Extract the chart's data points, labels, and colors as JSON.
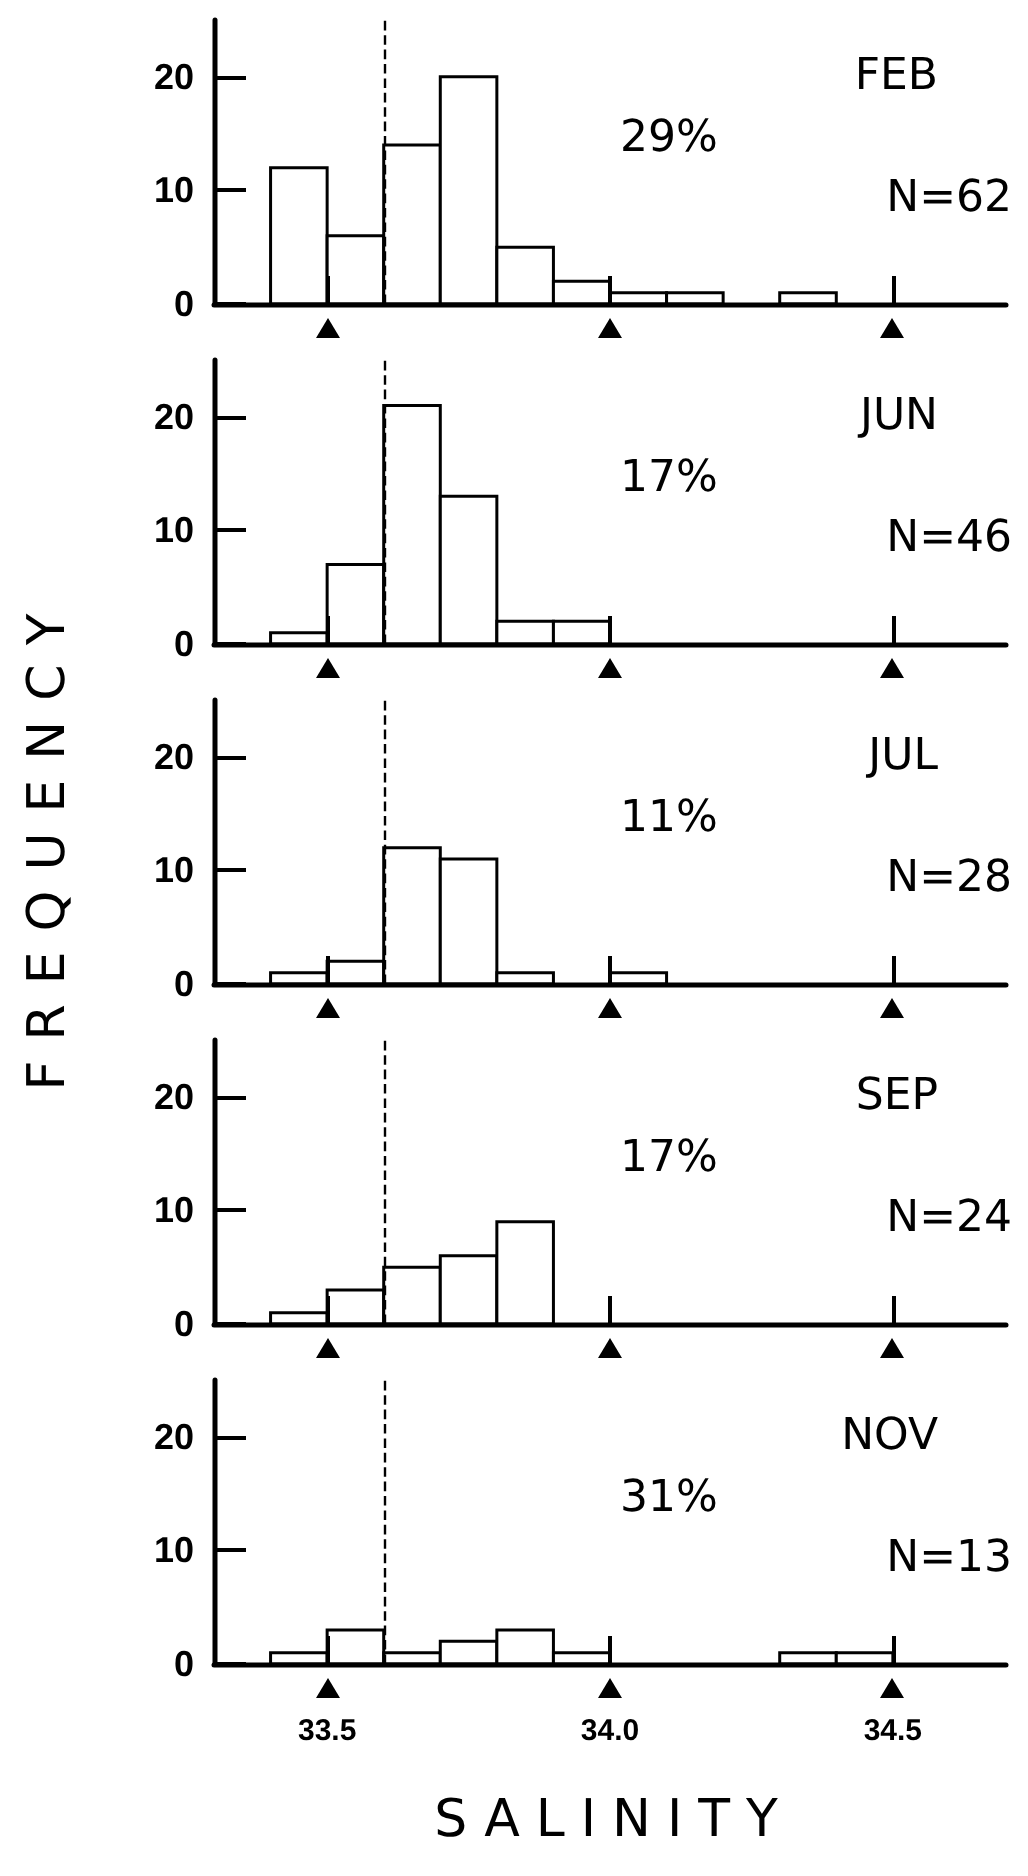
{
  "chart_data": [
    {
      "type": "histogram",
      "title": "FEB",
      "annotations": [
        "29%",
        "N=62"
      ],
      "bins": [
        33.3,
        33.4,
        33.5,
        33.6,
        33.7,
        33.8,
        33.9,
        34.0,
        34.1,
        34.2,
        34.3,
        34.4,
        34.5,
        34.6,
        34.7
      ],
      "values": [
        0,
        12,
        6,
        14,
        20,
        5,
        2,
        1,
        1,
        0,
        1,
        0,
        0,
        0
      ],
      "color": "#ffffff",
      "xlim": [
        33.3,
        34.7
      ],
      "xticks": [
        {
          "value": 33.5,
          "label": null
        },
        {
          "value": 34,
          "label": null
        },
        {
          "value": 34.5,
          "label": null
        }
      ],
      "ylim": [
        0,
        25
      ],
      "yticks": [
        0,
        10,
        20
      ],
      "tick_labels": "y",
      "ref_lines": [
        {
          "axis": "x",
          "value": 33.6,
          "line_style": "dashed"
        }
      ]
    },
    {
      "type": "histogram",
      "title": "JUN",
      "annotations": [
        "17%",
        "N=46"
      ],
      "bins": [
        33.3,
        33.4,
        33.5,
        33.6,
        33.7,
        33.8,
        33.9,
        34.0,
        34.1,
        34.2,
        34.3,
        34.4,
        34.5,
        34.6,
        34.7
      ],
      "values": [
        0,
        1,
        7,
        21,
        13,
        2,
        2,
        0,
        0,
        0,
        0,
        0,
        0,
        0
      ],
      "color": "#ffffff",
      "xlim": [
        33.3,
        34.7
      ],
      "xticks": [
        {
          "value": 33.5,
          "label": null
        },
        {
          "value": 34,
          "label": null
        },
        {
          "value": 34.5,
          "label": null
        }
      ],
      "ylim": [
        0,
        25
      ],
      "yticks": [
        0,
        10,
        20
      ],
      "tick_labels": "y",
      "ref_lines": [
        {
          "axis": "x",
          "value": 33.6,
          "line_style": "dashed"
        }
      ]
    },
    {
      "type": "histogram",
      "title": "JUL",
      "annotations": [
        "11%",
        "N=28"
      ],
      "ylabel": "FREQUENCY",
      "bins": [
        33.3,
        33.4,
        33.5,
        33.6,
        33.7,
        33.8,
        33.9,
        34.0,
        34.1,
        34.2,
        34.3,
        34.4,
        34.5,
        34.6,
        34.7
      ],
      "values": [
        0,
        1,
        2,
        12,
        11,
        1,
        0,
        1,
        0,
        0,
        0,
        0,
        0,
        0
      ],
      "color": "#ffffff",
      "xlim": [
        33.3,
        34.7
      ],
      "xticks": [
        {
          "value": 33.5,
          "label": null
        },
        {
          "value": 34,
          "label": null
        },
        {
          "value": 34.5,
          "label": null
        }
      ],
      "ylim": [
        0,
        25
      ],
      "yticks": [
        0,
        10,
        20
      ],
      "tick_labels": "y",
      "ref_lines": [
        {
          "axis": "x",
          "value": 33.6,
          "line_style": "dashed"
        }
      ]
    },
    {
      "type": "histogram",
      "title": "SEP",
      "annotations": [
        "17%",
        "N=24"
      ],
      "bins": [
        33.3,
        33.4,
        33.5,
        33.6,
        33.7,
        33.8,
        33.9,
        34.0,
        34.1,
        34.2,
        34.3,
        34.4,
        34.5,
        34.6,
        34.7
      ],
      "values": [
        0,
        1,
        3,
        5,
        6,
        9,
        0,
        0,
        0,
        0,
        0,
        0,
        0,
        0
      ],
      "color": "#ffffff",
      "xlim": [
        33.3,
        34.7
      ],
      "xticks": [
        {
          "value": 33.5,
          "label": null
        },
        {
          "value": 34,
          "label": null
        },
        {
          "value": 34.5,
          "label": null
        }
      ],
      "ylim": [
        0,
        25
      ],
      "yticks": [
        0,
        10,
        20
      ],
      "tick_labels": "y",
      "ref_lines": [
        {
          "axis": "x",
          "value": 33.6,
          "line_style": "dashed"
        }
      ]
    },
    {
      "type": "histogram",
      "title": "NOV",
      "annotations": [
        "31%",
        "N=13"
      ],
      "xlabel": "SALINITY",
      "bins": [
        33.3,
        33.4,
        33.5,
        33.6,
        33.7,
        33.8,
        33.9,
        34.0,
        34.1,
        34.2,
        34.3,
        34.4,
        34.5,
        34.6,
        34.7
      ],
      "values": [
        0,
        1,
        3,
        1,
        2,
        3,
        1,
        0,
        0,
        0,
        1,
        1,
        0,
        0
      ],
      "color": "#ffffff",
      "xlim": [
        33.3,
        34.7
      ],
      "xticks": [
        33.5,
        {
          "value": 34,
          "label": "34.0"
        },
        34.5
      ],
      "ylim": [
        0,
        25
      ],
      "yticks": [
        0,
        10,
        20
      ],
      "ref_lines": [
        {
          "axis": "x",
          "value": 33.6,
          "line_style": "dashed"
        }
      ]
    }
  ]
}
